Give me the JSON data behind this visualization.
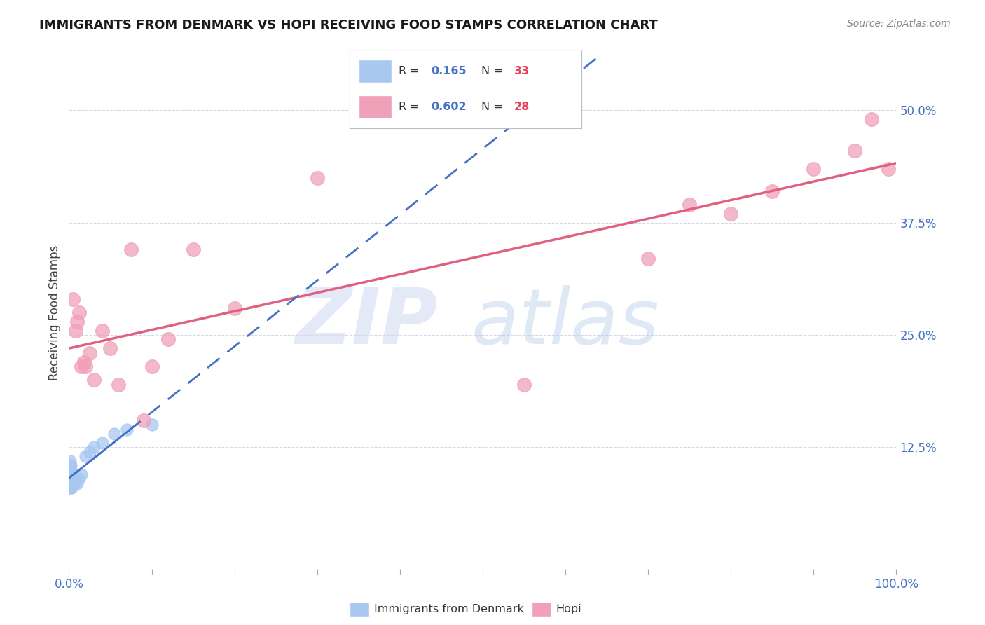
{
  "title": "IMMIGRANTS FROM DENMARK VS HOPI RECEIVING FOOD STAMPS CORRELATION CHART",
  "source": "Source: ZipAtlas.com",
  "ylabel": "Receiving Food Stamps",
  "ytick_labels": [
    "12.5%",
    "25.0%",
    "37.5%",
    "50.0%"
  ],
  "ytick_values": [
    0.125,
    0.25,
    0.375,
    0.5
  ],
  "xlim": [
    0.0,
    1.0
  ],
  "ylim": [
    -0.01,
    0.56
  ],
  "color_denmark": "#a8c8f0",
  "color_hopi": "#f0a0b8",
  "line_color_denmark": "#4472c4",
  "line_color_hopi": "#e06080",
  "background_color": "#ffffff",
  "grid_color": "#d8d8e8",
  "denmark_x": [
    0.001,
    0.001,
    0.001,
    0.001,
    0.001,
    0.001,
    0.001,
    0.001,
    0.002,
    0.002,
    0.002,
    0.002,
    0.002,
    0.002,
    0.003,
    0.003,
    0.003,
    0.003,
    0.004,
    0.004,
    0.005,
    0.006,
    0.008,
    0.01,
    0.012,
    0.015,
    0.02,
    0.025,
    0.03,
    0.04,
    0.055,
    0.07,
    0.1
  ],
  "denmark_y": [
    0.095,
    0.1,
    0.105,
    0.11,
    0.1,
    0.09,
    0.085,
    0.08,
    0.105,
    0.1,
    0.095,
    0.09,
    0.085,
    0.08,
    0.095,
    0.09,
    0.085,
    0.08,
    0.095,
    0.09,
    0.09,
    0.085,
    0.09,
    0.085,
    0.09,
    0.095,
    0.115,
    0.12,
    0.125,
    0.13,
    0.14,
    0.145,
    0.15
  ],
  "hopi_x": [
    0.005,
    0.008,
    0.01,
    0.012,
    0.015,
    0.018,
    0.02,
    0.025,
    0.03,
    0.04,
    0.05,
    0.06,
    0.075,
    0.09,
    0.1,
    0.12,
    0.15,
    0.2,
    0.3,
    0.55,
    0.7,
    0.75,
    0.8,
    0.85,
    0.9,
    0.95,
    0.97,
    0.99
  ],
  "hopi_y": [
    0.29,
    0.255,
    0.265,
    0.275,
    0.215,
    0.22,
    0.215,
    0.23,
    0.2,
    0.255,
    0.235,
    0.195,
    0.345,
    0.155,
    0.215,
    0.245,
    0.345,
    0.28,
    0.425,
    0.195,
    0.335,
    0.395,
    0.385,
    0.41,
    0.435,
    0.455,
    0.49,
    0.435
  ],
  "legend_r_dk": "R = ",
  "legend_r_dk_val": "0.165",
  "legend_n_dk": "N = ",
  "legend_n_dk_val": "33",
  "legend_r_hopi": "R = ",
  "legend_r_hopi_val": "0.602",
  "legend_n_hopi": "N = ",
  "legend_n_hopi_val": "28",
  "legend_label_dk": "Immigrants from Denmark",
  "legend_label_hopi": "Hopi"
}
